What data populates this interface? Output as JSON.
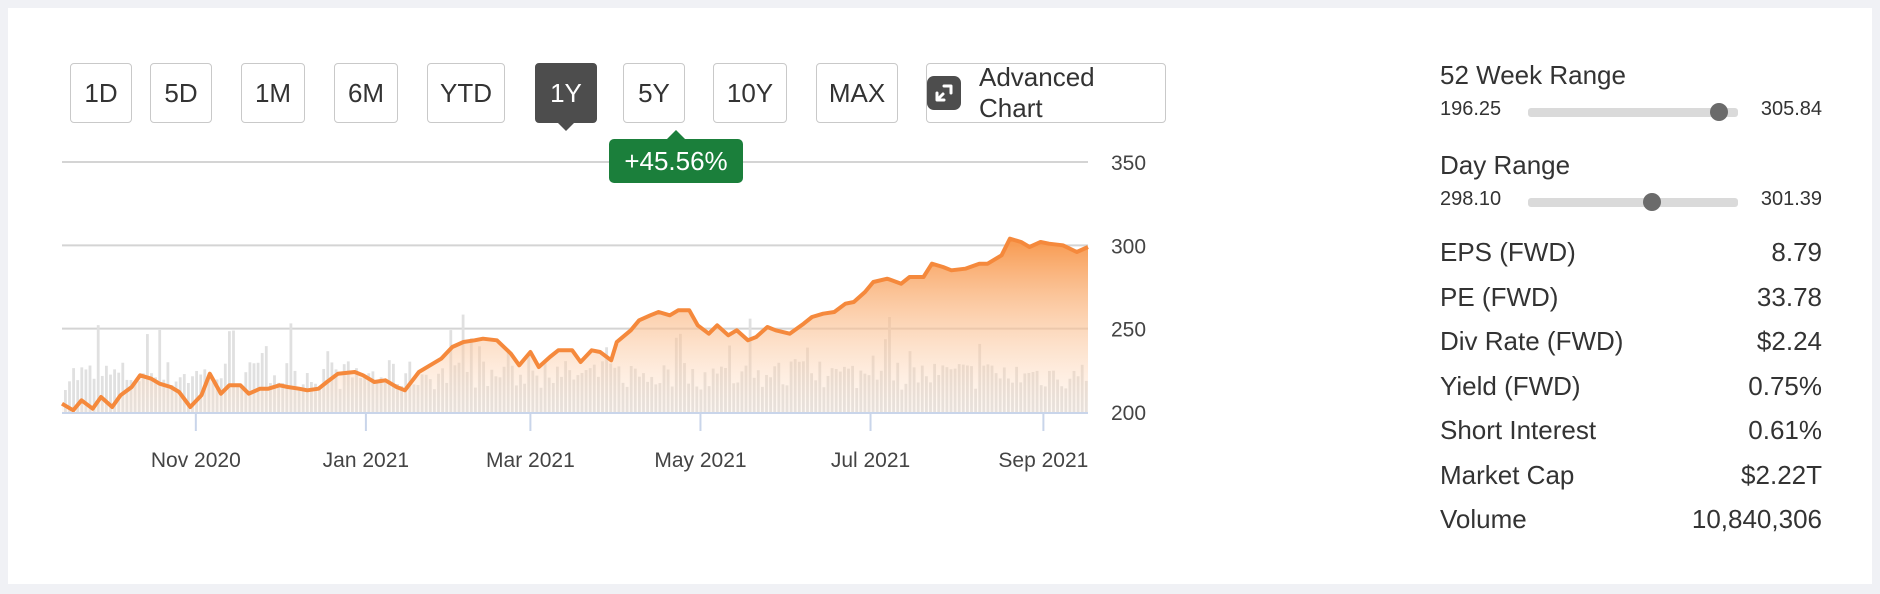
{
  "periods": [
    "1D",
    "5D",
    "1M",
    "6M",
    "YTD",
    "1Y",
    "5Y",
    "10Y",
    "MAX"
  ],
  "active_period": "1Y",
  "advanced_chart_label": "Advanced Chart",
  "change_badge": "+45.56%",
  "stats": {
    "week52": {
      "title": "52 Week Range",
      "low": "196.25",
      "high": "305.84",
      "position": 0.91
    },
    "day": {
      "title": "Day Range",
      "low": "298.10",
      "high": "301.39",
      "position": 0.59
    },
    "metrics": [
      {
        "label": "EPS (FWD)",
        "value": "8.79"
      },
      {
        "label": "PE (FWD)",
        "value": "33.78"
      },
      {
        "label": "Div Rate (FWD)",
        "value": "$2.24"
      },
      {
        "label": "Yield (FWD)",
        "value": "0.75%"
      },
      {
        "label": "Short Interest",
        "value": "0.61%"
      },
      {
        "label": "Market Cap",
        "value": "$2.22T"
      },
      {
        "label": "Volume",
        "value": "10,840,306"
      }
    ]
  },
  "chart_data": {
    "type": "area",
    "x_start": "2020-09-14",
    "x_end": "2021-09-17",
    "ylim": [
      200,
      350
    ],
    "y_ticks": [
      200,
      250,
      300,
      350
    ],
    "x_ticks": [
      {
        "date": "2020-11-01",
        "label": "Nov 2020"
      },
      {
        "date": "2021-01-01",
        "label": "Jan 2021"
      },
      {
        "date": "2021-03-01",
        "label": "Mar 2021"
      },
      {
        "date": "2021-05-01",
        "label": "May 2021"
      },
      {
        "date": "2021-07-01",
        "label": "Jul 2021"
      },
      {
        "date": "2021-09-01",
        "label": "Sep 2021"
      }
    ],
    "grid": true,
    "series": [
      {
        "values": [
          [
            "2020-09-14",
            205
          ],
          [
            "2020-09-18",
            201
          ],
          [
            "2020-09-21",
            207
          ],
          [
            "2020-09-25",
            202
          ],
          [
            "2020-09-28",
            209
          ],
          [
            "2020-10-02",
            203
          ],
          [
            "2020-10-05",
            210
          ],
          [
            "2020-10-09",
            215
          ],
          [
            "2020-10-12",
            222
          ],
          [
            "2020-10-16",
            220
          ],
          [
            "2020-10-19",
            217
          ],
          [
            "2020-10-23",
            215
          ],
          [
            "2020-10-26",
            212
          ],
          [
            "2020-10-30",
            203
          ],
          [
            "2020-11-03",
            210
          ],
          [
            "2020-11-06",
            223
          ],
          [
            "2020-11-10",
            211
          ],
          [
            "2020-11-13",
            216
          ],
          [
            "2020-11-17",
            216
          ],
          [
            "2020-11-20",
            211
          ],
          [
            "2020-11-24",
            214
          ],
          [
            "2020-11-27",
            214
          ],
          [
            "2020-12-01",
            216
          ],
          [
            "2020-12-04",
            215
          ],
          [
            "2020-12-08",
            214
          ],
          [
            "2020-12-11",
            213
          ],
          [
            "2020-12-15",
            214
          ],
          [
            "2020-12-18",
            218
          ],
          [
            "2020-12-22",
            223
          ],
          [
            "2020-12-28",
            224
          ],
          [
            "2020-12-31",
            222
          ],
          [
            "2021-01-04",
            218
          ],
          [
            "2021-01-08",
            219
          ],
          [
            "2021-01-12",
            215
          ],
          [
            "2021-01-15",
            213
          ],
          [
            "2021-01-20",
            224
          ],
          [
            "2021-01-25",
            229
          ],
          [
            "2021-01-28",
            232
          ],
          [
            "2021-02-01",
            239
          ],
          [
            "2021-02-05",
            242
          ],
          [
            "2021-02-09",
            243
          ],
          [
            "2021-02-12",
            244
          ],
          [
            "2021-02-17",
            243
          ],
          [
            "2021-02-22",
            235
          ],
          [
            "2021-02-25",
            228
          ],
          [
            "2021-03-01",
            236
          ],
          [
            "2021-03-04",
            227
          ],
          [
            "2021-03-08",
            233
          ],
          [
            "2021-03-11",
            237
          ],
          [
            "2021-03-16",
            237
          ],
          [
            "2021-03-19",
            230
          ],
          [
            "2021-03-23",
            237
          ],
          [
            "2021-03-26",
            236
          ],
          [
            "2021-03-30",
            231
          ],
          [
            "2021-04-01",
            242
          ],
          [
            "2021-04-06",
            249
          ],
          [
            "2021-04-09",
            255
          ],
          [
            "2021-04-13",
            258
          ],
          [
            "2021-04-16",
            260
          ],
          [
            "2021-04-20",
            258
          ],
          [
            "2021-04-23",
            261
          ],
          [
            "2021-04-27",
            261
          ],
          [
            "2021-04-30",
            252
          ],
          [
            "2021-05-04",
            247
          ],
          [
            "2021-05-07",
            252
          ],
          [
            "2021-05-11",
            246
          ],
          [
            "2021-05-14",
            249
          ],
          [
            "2021-05-18",
            243
          ],
          [
            "2021-05-21",
            245
          ],
          [
            "2021-05-25",
            251
          ],
          [
            "2021-05-28",
            249
          ],
          [
            "2021-06-02",
            247
          ],
          [
            "2021-06-07",
            253
          ],
          [
            "2021-06-10",
            257
          ],
          [
            "2021-06-14",
            259
          ],
          [
            "2021-06-18",
            260
          ],
          [
            "2021-06-22",
            265
          ],
          [
            "2021-06-25",
            266
          ],
          [
            "2021-06-29",
            272
          ],
          [
            "2021-07-02",
            278
          ],
          [
            "2021-07-07",
            280
          ],
          [
            "2021-07-12",
            277
          ],
          [
            "2021-07-15",
            281
          ],
          [
            "2021-07-20",
            281
          ],
          [
            "2021-07-23",
            289
          ],
          [
            "2021-07-27",
            287
          ],
          [
            "2021-07-30",
            285
          ],
          [
            "2021-08-04",
            286
          ],
          [
            "2021-08-09",
            289
          ],
          [
            "2021-08-12",
            289
          ],
          [
            "2021-08-17",
            294
          ],
          [
            "2021-08-20",
            304
          ],
          [
            "2021-08-24",
            302
          ],
          [
            "2021-08-27",
            299
          ],
          [
            "2021-08-31",
            302
          ],
          [
            "2021-09-03",
            301
          ],
          [
            "2021-09-08",
            300
          ],
          [
            "2021-09-13",
            296
          ],
          [
            "2021-09-17",
            299
          ]
        ]
      }
    ]
  }
}
